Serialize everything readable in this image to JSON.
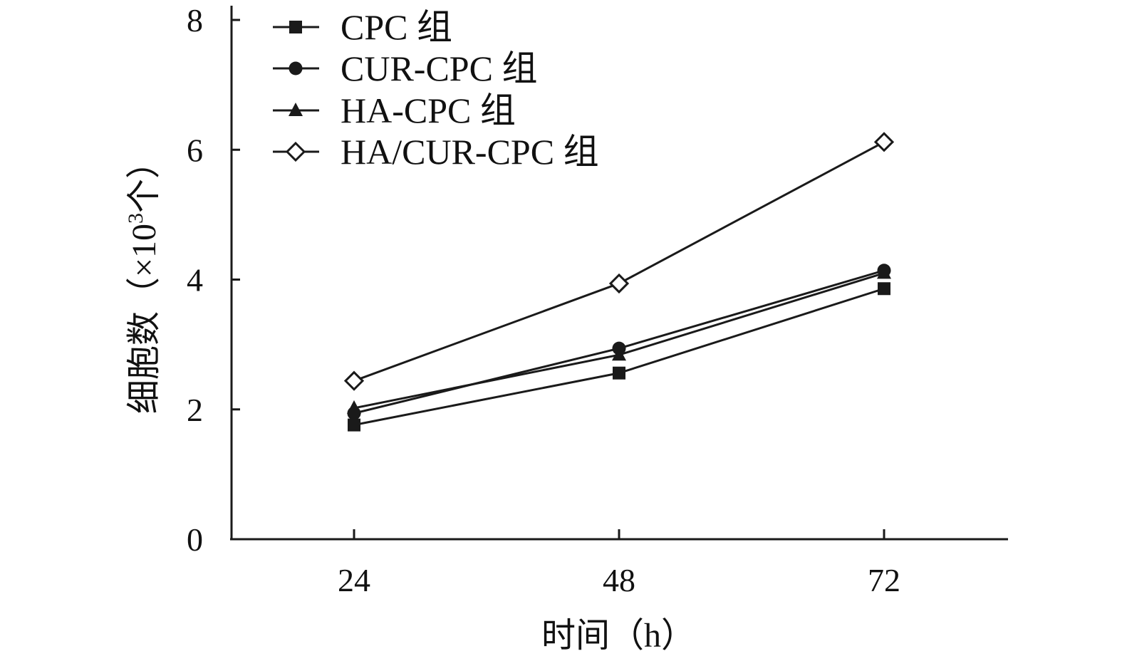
{
  "chart_data": {
    "type": "line",
    "title": "",
    "xlabel": "时间（h）",
    "ylabel_prefix": "细胞数（×10",
    "ylabel_sup": "3",
    "ylabel_suffix": "个）",
    "x": [
      24,
      48,
      72
    ],
    "xtick_labels": [
      "24",
      "48",
      "72"
    ],
    "ylim": [
      0,
      8
    ],
    "yticks": [
      0,
      2,
      4,
      6,
      8
    ],
    "ytick_labels": [
      "0",
      "2",
      "4",
      "6",
      "8"
    ],
    "grid": false,
    "legend_position": "top-left",
    "series": [
      {
        "name": "CPC 组",
        "marker": "square",
        "values": [
          1.76,
          2.56,
          3.86
        ]
      },
      {
        "name": "CUR-CPC 组",
        "marker": "circle",
        "values": [
          1.94,
          2.94,
          4.14
        ]
      },
      {
        "name": "HA-CPC 组",
        "marker": "triangle",
        "values": [
          2.02,
          2.84,
          4.1
        ]
      },
      {
        "name": "HA/CUR-CPC 组",
        "marker": "diamond-open",
        "values": [
          2.44,
          3.94,
          6.12
        ]
      }
    ],
    "line_color": "#1a1a1a"
  }
}
